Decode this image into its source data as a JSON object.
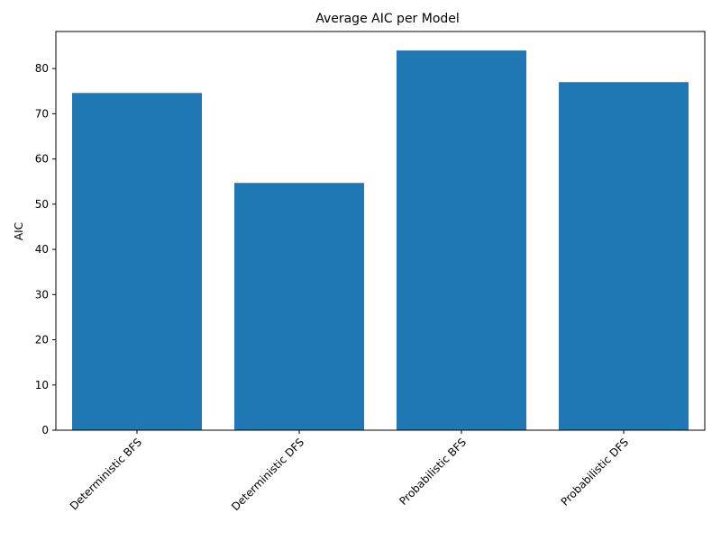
{
  "chart_data": {
    "type": "bar",
    "title": "Average AIC per Model",
    "xlabel": "",
    "ylabel": "AIC",
    "categories": [
      "Deterministic BFS",
      "Deterministic DFS",
      "Probabilistic BFS",
      "Probabilistic DFS"
    ],
    "values": [
      74.6,
      54.7,
      84.0,
      77.0
    ],
    "ylim": [
      0,
      88.2
    ],
    "yticks": [
      0,
      10,
      20,
      30,
      40,
      50,
      60,
      70,
      80
    ],
    "bar_color": "#1f77b4",
    "grid": false,
    "x_tick_rotation": 45
  }
}
